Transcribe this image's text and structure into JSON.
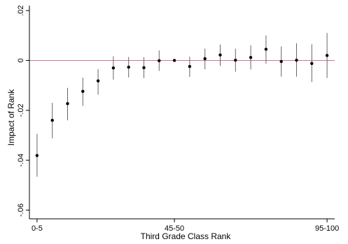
{
  "chart_data": {
    "type": "scatter",
    "style": "point-estimates-with-confidence-intervals",
    "title": "",
    "xlabel": "Third Grade Class Rank",
    "ylabel": "Impact of Rank",
    "x_tick_labels": [
      {
        "at": 1,
        "label": "0-5"
      },
      {
        "at": 10,
        "label": "45-50"
      },
      {
        "at": 20,
        "label": "95-100"
      }
    ],
    "y_ticks": [
      {
        "value": 0.02,
        "label": ".02"
      },
      {
        "value": 0,
        "label": "0"
      },
      {
        "value": -0.02,
        "label": "-.02"
      },
      {
        "value": -0.04,
        "label": "-.04"
      },
      {
        "value": -0.06,
        "label": "-.06"
      }
    ],
    "xlim": [
      0.5,
      20.5
    ],
    "ylim": [
      -0.0635,
      0.022
    ],
    "reference_line": {
      "y": 0,
      "color": "#d9738a"
    },
    "grid": false,
    "legend": "none",
    "colors": {
      "point": "#000000",
      "ci": "#666666",
      "axis": "#000000"
    },
    "points": [
      {
        "x": 1,
        "y": -0.0381,
        "lo": -0.0466,
        "hi": -0.0294
      },
      {
        "x": 2,
        "y": -0.024,
        "lo": -0.0312,
        "hi": -0.017
      },
      {
        "x": 3,
        "y": -0.0173,
        "lo": -0.024,
        "hi": -0.011
      },
      {
        "x": 4,
        "y": -0.0124,
        "lo": -0.0182,
        "hi": -0.0069
      },
      {
        "x": 5,
        "y": -0.0082,
        "lo": -0.0137,
        "hi": -0.0035
      },
      {
        "x": 6,
        "y": -0.003,
        "lo": -0.0077,
        "hi": 0.0017
      },
      {
        "x": 7,
        "y": -0.0027,
        "lo": -0.0068,
        "hi": 0.0014
      },
      {
        "x": 8,
        "y": -0.0029,
        "lo": -0.0071,
        "hi": 0.0013
      },
      {
        "x": 9,
        "y": -0.0001,
        "lo": -0.0042,
        "hi": 0.004
      },
      {
        "x": 10,
        "y": 0.0,
        "lo": 0.0,
        "hi": 0.0
      },
      {
        "x": 11,
        "y": -0.0024,
        "lo": -0.0066,
        "hi": 0.0015
      },
      {
        "x": 12,
        "y": 0.0007,
        "lo": -0.0035,
        "hi": 0.0047
      },
      {
        "x": 13,
        "y": 0.0022,
        "lo": -0.0022,
        "hi": 0.0064
      },
      {
        "x": 14,
        "y": 0.0001,
        "lo": -0.0045,
        "hi": 0.0047
      },
      {
        "x": 15,
        "y": 0.0012,
        "lo": -0.0036,
        "hi": 0.0061
      },
      {
        "x": 16,
        "y": 0.0045,
        "lo": -0.0013,
        "hi": 0.01
      },
      {
        "x": 17,
        "y": -0.0004,
        "lo": -0.0065,
        "hi": 0.0056
      },
      {
        "x": 18,
        "y": 0.0001,
        "lo": -0.0065,
        "hi": 0.0069
      },
      {
        "x": 19,
        "y": -0.0012,
        "lo": -0.0087,
        "hi": 0.0065
      },
      {
        "x": 20,
        "y": 0.002,
        "lo": -0.007,
        "hi": 0.011
      }
    ]
  }
}
